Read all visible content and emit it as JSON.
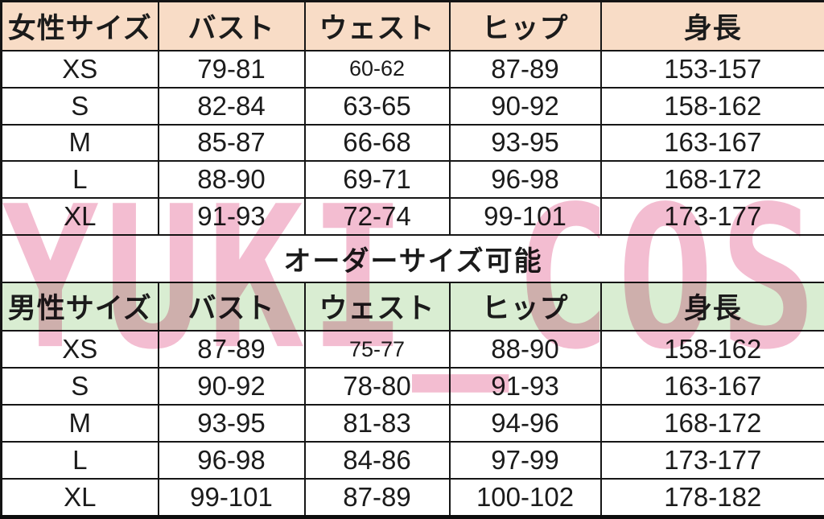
{
  "watermark": "YUKI_COS",
  "order_note": "オーダーサイズ可能",
  "colors": {
    "women_header_bg": "#f8dcc6",
    "men_header_bg": "#d9edd2",
    "watermark_pink": "#f3bdd1",
    "border": "#161616",
    "text": "#1b1b1b"
  },
  "chart_data": [
    {
      "type": "table",
      "title": "女性サイズ",
      "columns": [
        "女性サイズ",
        "バスト",
        "ウェスト",
        "ヒップ",
        "身長"
      ],
      "rows": [
        [
          "XS",
          "79-81",
          "60-62",
          "87-89",
          "153-157"
        ],
        [
          "S",
          "82-84",
          "63-65",
          "90-92",
          "158-162"
        ],
        [
          "M",
          "85-87",
          "66-68",
          "93-95",
          "163-167"
        ],
        [
          "L",
          "88-90",
          "69-71",
          "96-98",
          "168-172"
        ],
        [
          "XL",
          "91-93",
          "72-74",
          "99-101",
          "173-177"
        ]
      ],
      "small_cells": [
        [
          0,
          2
        ]
      ]
    },
    {
      "type": "table",
      "title": "男性サイズ",
      "columns": [
        "男性サイズ",
        "バスト",
        "ウェスト",
        "ヒップ",
        "身長"
      ],
      "rows": [
        [
          "XS",
          "87-89",
          "75-77",
          "88-90",
          "158-162"
        ],
        [
          "S",
          "90-92",
          "78-80",
          "91-93",
          "163-167"
        ],
        [
          "M",
          "93-95",
          "81-83",
          "94-96",
          "168-172"
        ],
        [
          "L",
          "96-98",
          "84-86",
          "97-99",
          "173-177"
        ],
        [
          "XL",
          "99-101",
          "87-89",
          "100-102",
          "178-182"
        ]
      ],
      "small_cells": [
        [
          0,
          2
        ]
      ]
    }
  ]
}
